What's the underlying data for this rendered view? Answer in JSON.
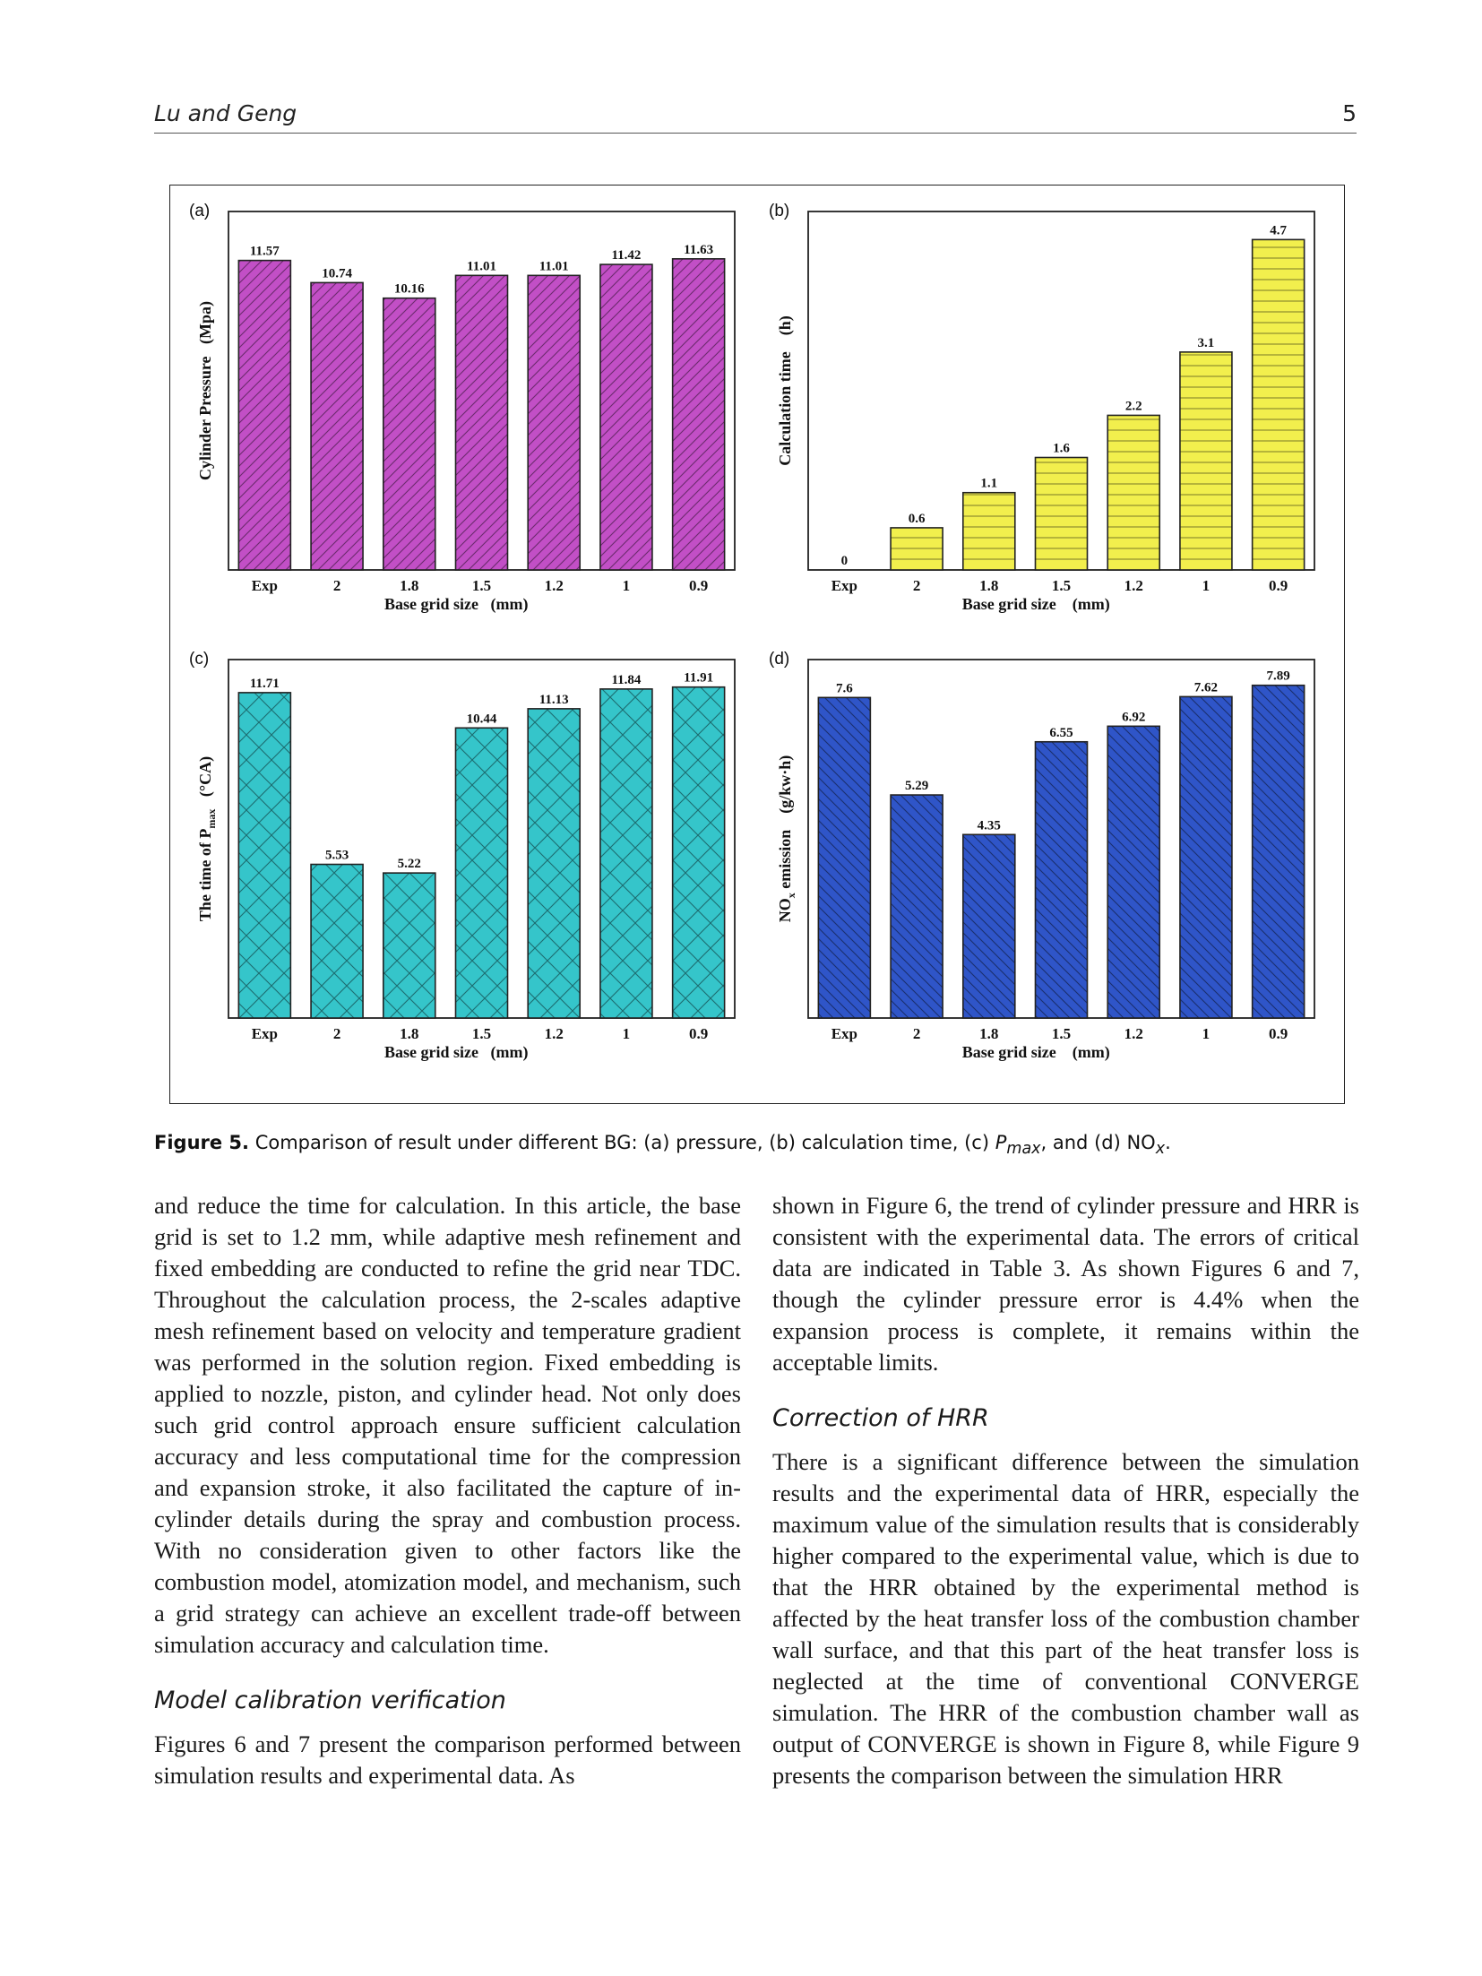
{
  "header": {
    "authors": "Lu and Geng",
    "page_number": "5"
  },
  "figure": {
    "caption_label": "Figure 5.",
    "caption_text": " Comparison of result under different BG: (a) pressure, (b) calculation time, (c) ",
    "caption_pmax": "P",
    "caption_pmax_sub": "max",
    "caption_text2": ", and (d) NO",
    "caption_nox_sub": "x",
    "caption_end": "."
  },
  "chart_data": [
    {
      "panel": "(a)",
      "type": "bar",
      "categories": [
        "Exp",
        "2",
        "1.8",
        "1.5",
        "1.2",
        "1",
        "0.9"
      ],
      "values": [
        11.57,
        10.74,
        10.16,
        11.01,
        11.01,
        11.42,
        11.63
      ],
      "value_labels": [
        "11.57",
        "10.74",
        "10.16",
        "11.01",
        "11.01",
        "11.42",
        "11.63"
      ],
      "xlabel": "Base grid size   (mm)",
      "ylabel": "Cylinder Pressure   (Mpa)",
      "ylim": [
        0,
        13.4
      ],
      "color": "#c24fc6",
      "pattern": "diagonal"
    },
    {
      "panel": "(b)",
      "type": "bar",
      "categories": [
        "Exp",
        "2",
        "1.8",
        "1.5",
        "1.2",
        "1",
        "0.9"
      ],
      "values": [
        0,
        0.6,
        1.1,
        1.6,
        2.2,
        3.1,
        4.7
      ],
      "value_labels": [
        "0",
        "0.6",
        "1.1",
        "1.6",
        "2.2",
        "3.1",
        "4.7"
      ],
      "xlabel": "Base grid size    (mm)",
      "ylabel": "Calculation time    (h)",
      "ylim": [
        0,
        5.1
      ],
      "color": "#f2ef4d",
      "pattern": "horizontal"
    },
    {
      "panel": "(c)",
      "type": "bar",
      "categories": [
        "Exp",
        "2",
        "1.8",
        "1.5",
        "1.2",
        "1",
        "0.9"
      ],
      "values": [
        11.71,
        5.53,
        5.22,
        10.44,
        11.13,
        11.84,
        11.91
      ],
      "value_labels": [
        "11.71",
        "5.53",
        "5.22",
        "10.44",
        "11.13",
        "11.84",
        "11.91"
      ],
      "xlabel": "Base grid size   (mm)",
      "ylabel_main": "The time of P",
      "ylabel_sub": "max",
      "ylabel_unit": "   (°CA)",
      "ylim": [
        0,
        12.9
      ],
      "color": "#35c5ca",
      "pattern": "crosshatch"
    },
    {
      "panel": "(d)",
      "type": "bar",
      "categories": [
        "Exp",
        "2",
        "1.8",
        "1.5",
        "1.2",
        "1",
        "0.9"
      ],
      "values": [
        7.6,
        5.29,
        4.35,
        6.55,
        6.92,
        7.62,
        7.89
      ],
      "value_labels": [
        "7.6",
        "5.29",
        "4.35",
        "6.55",
        "6.92",
        "7.62",
        "7.89"
      ],
      "xlabel": "Base grid size    (mm)",
      "ylabel_main": "NO",
      "ylabel_sub": "x",
      "ylabel_unit": " emission    (g/kw·h)",
      "ylim": [
        0,
        8.5
      ],
      "color": "#2f55c8",
      "pattern": "backslash"
    }
  ],
  "body": {
    "left_para1": "and reduce the time for calculation. In this article, the base grid is set to 1.2 mm, while adaptive mesh refinement and fixed embedding are conducted to refine the grid near TDC. Throughout the calculation process, the 2-scales adaptive mesh refinement based on velocity and temperature gradient was performed in the solution region. Fixed embedding is applied to nozzle, piston, and cylinder head. Not only does such grid control approach ensure sufficient calculation accuracy and less computational time for the compression and expansion stroke, it also facilitated the capture of in-cylinder details during the spray and combustion process. With no consideration given to other factors like the combustion model, atomization model, and mechanism, such a grid strategy can achieve an excellent trade-off between simulation accuracy and calculation time.",
    "heading_model": "Model calibration verification",
    "left_para2": "Figures 6 and 7 present the comparison performed between simulation results and experimental data. As",
    "right_para1": "shown in Figure 6, the trend of cylinder pressure and HRR is consistent with the experimental data. The errors of critical data are indicated in Table 3. As shown Figures 6 and 7, though the cylinder pressure error is 4.4% when the expansion process is complete, it remains within the acceptable limits.",
    "heading_hrr": "Correction of HRR",
    "right_para2": "There is a significant difference between the simulation results and the experimental data of HRR, especially the maximum value of the simulation results that is considerably higher compared to the experimental value, which is due to that the HRR obtained by the experimental method is affected by the heat transfer loss of the combustion chamber wall surface, and that this part of the heat transfer loss is neglected at the time of conventional CONVERGE simulation. The HRR of the combustion chamber wall as output of CONVERGE is shown in Figure 8, while Figure 9 presents the comparison between the simulation HRR"
  }
}
